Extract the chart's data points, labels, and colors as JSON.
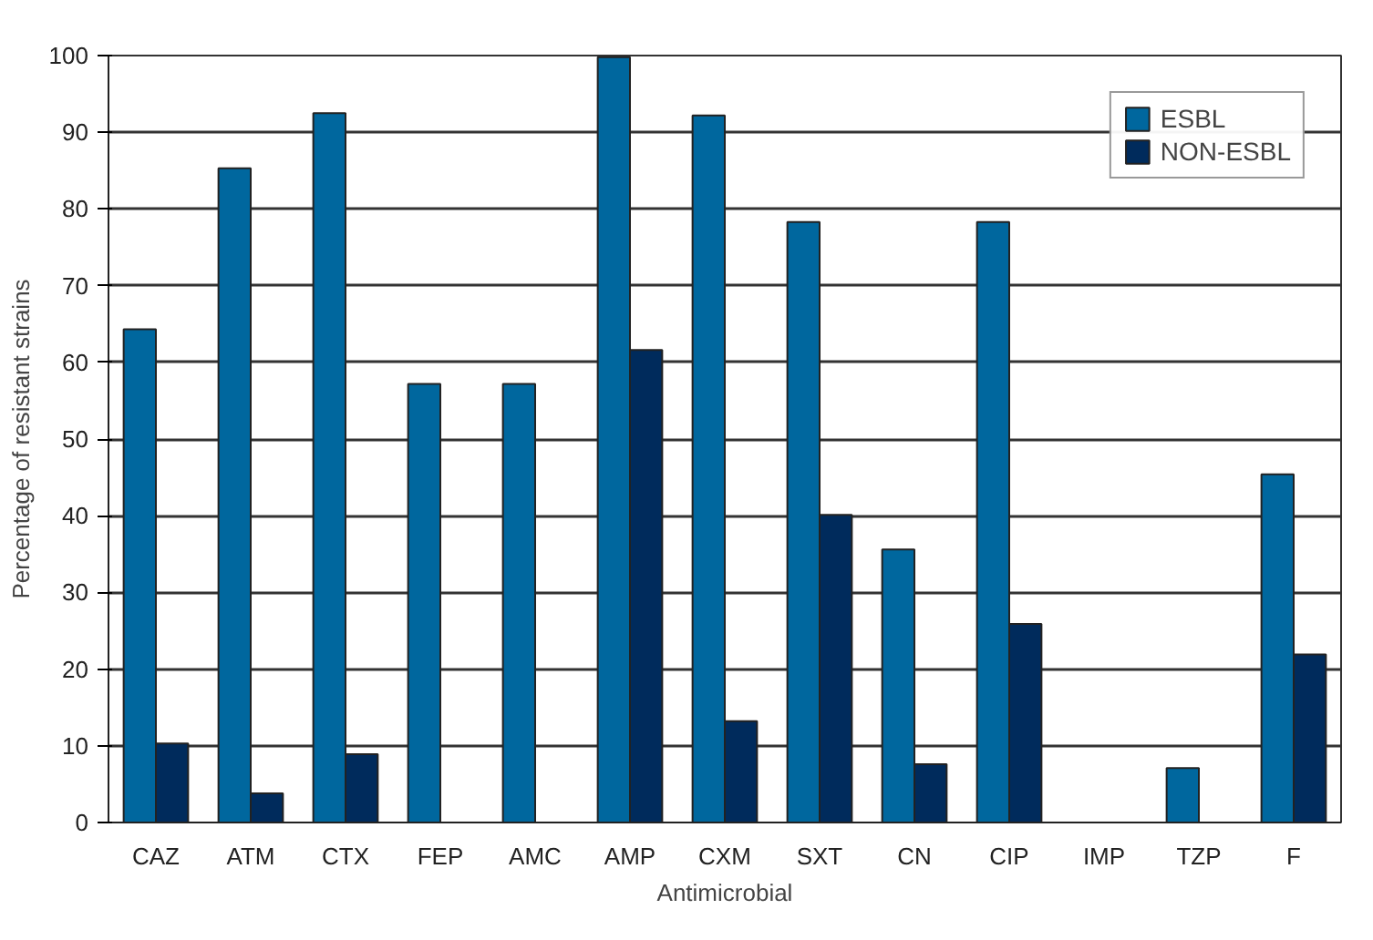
{
  "chart_data": {
    "type": "bar",
    "xlabel": "Antimicrobial",
    "ylabel": "Percentage of resistant strains",
    "categories": [
      "CAZ",
      "ATM",
      "CTX",
      "FEP",
      "AMC",
      "AMP",
      "CXM",
      "SXT",
      "CN",
      "CIP",
      "IMP",
      "TZP",
      "F"
    ],
    "series": [
      {
        "name": "ESBL",
        "color": "#00679e",
        "values": [
          64.3,
          85.3,
          92.5,
          57.2,
          57.2,
          99.8,
          92.2,
          78.3,
          35.6,
          78.3,
          0,
          7.1,
          45.4
        ]
      },
      {
        "name": "NON-ESBL",
        "color": "#002b5c",
        "values": [
          10.3,
          3.8,
          8.9,
          0,
          0,
          61.6,
          13.2,
          40.1,
          7.6,
          25.9,
          0,
          0,
          21.9
        ]
      }
    ],
    "ylim": [
      0,
      100
    ],
    "yticks": [
      0,
      10,
      20,
      30,
      40,
      50,
      60,
      70,
      80,
      90,
      100
    ],
    "grid": "y",
    "legend": "top right"
  }
}
